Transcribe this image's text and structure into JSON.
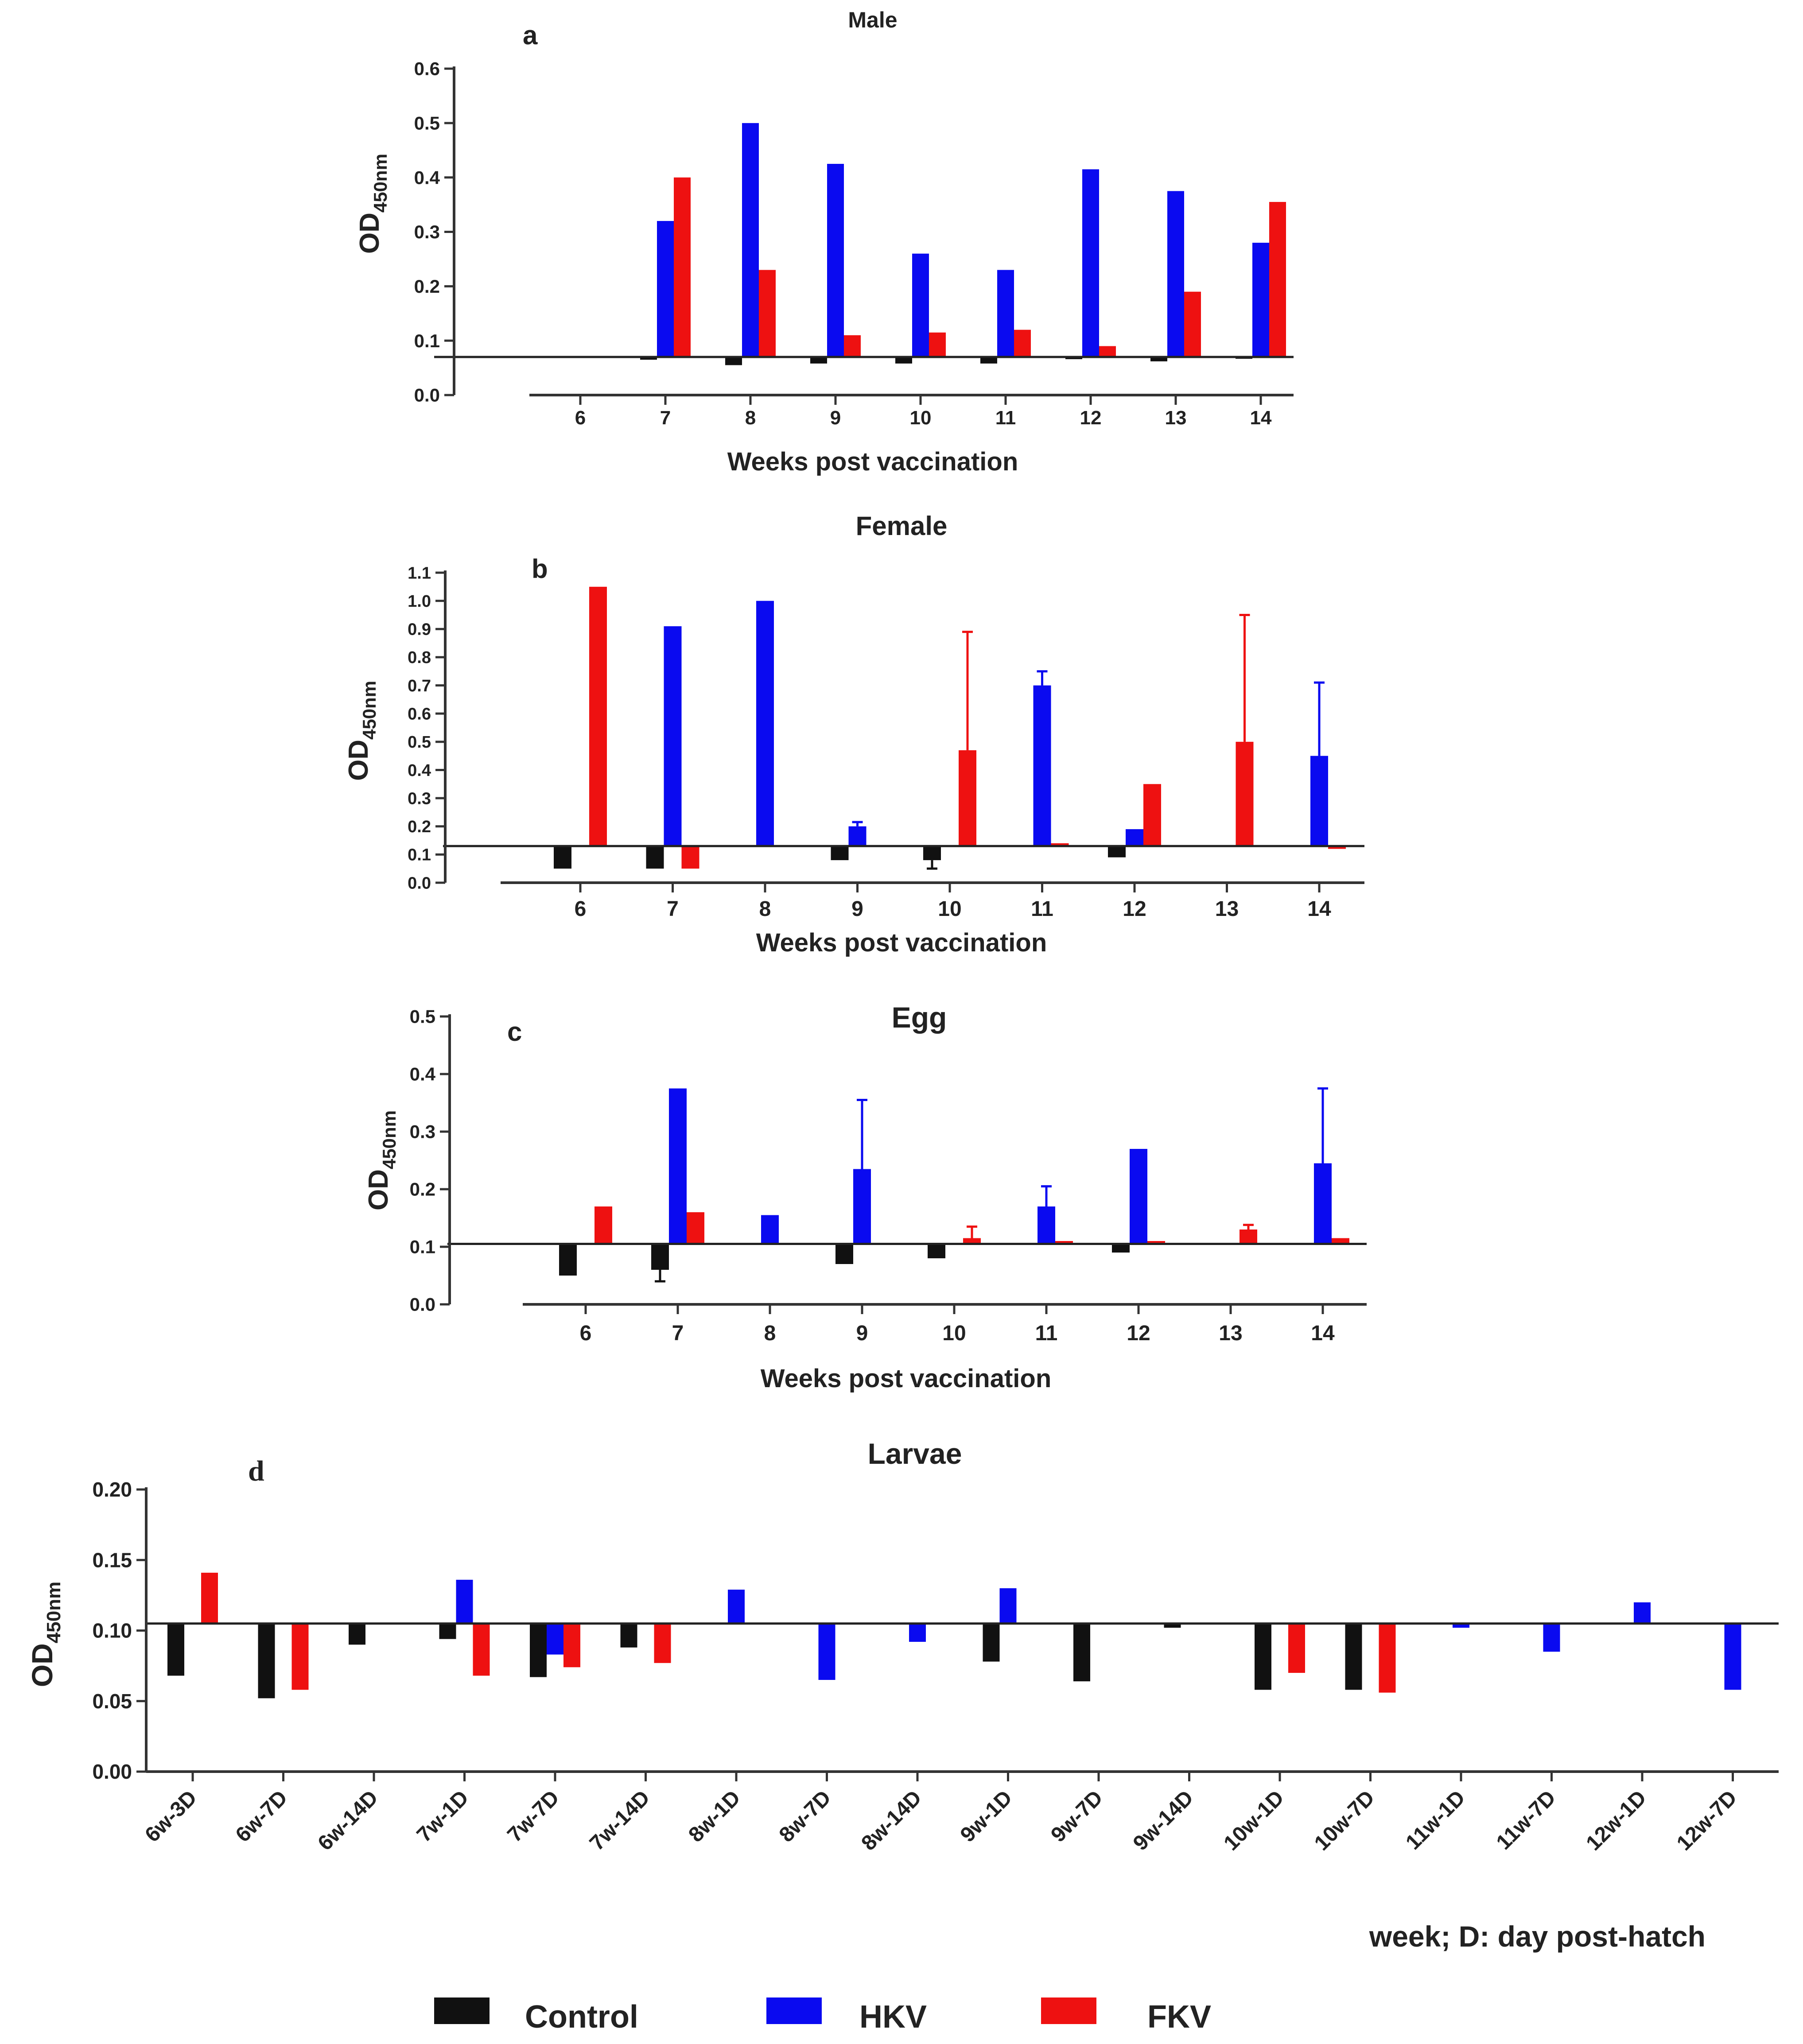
{
  "colors": {
    "Control": "#111111",
    "HKV": "#0a0af0",
    "FKV": "#ee1111"
  },
  "legend": [
    {
      "name": "Control",
      "color": "#111111"
    },
    {
      "name": "HKV",
      "color": "#0a0af0"
    },
    {
      "name": "FKV",
      "color": "#ee1111"
    }
  ],
  "chart_data": [
    {
      "id": "a",
      "type": "bar",
      "panel_label": "a",
      "title": "Male",
      "ylabel_main": "OD",
      "ylabel_sub": "450nm",
      "xlabel": "Weeks post vaccination",
      "baseline": 0.07,
      "ylim": [
        0,
        0.6
      ],
      "yticks": [
        "0.0",
        "0.1",
        "0.2",
        "0.3",
        "0.4",
        "0.5",
        "0.6"
      ],
      "categories": [
        "6",
        "7",
        "8",
        "9",
        "10",
        "11",
        "12",
        "13",
        "14"
      ],
      "series": [
        {
          "name": "Control",
          "values": [
            null,
            0.065,
            0.055,
            0.058,
            0.058,
            0.058,
            0.066,
            0.062,
            0.068
          ]
        },
        {
          "name": "HKV",
          "values": [
            null,
            0.32,
            0.5,
            0.425,
            0.26,
            0.23,
            0.415,
            0.375,
            0.28
          ]
        },
        {
          "name": "FKV",
          "values": [
            null,
            0.4,
            0.23,
            0.11,
            0.115,
            0.12,
            0.09,
            0.19,
            0.355
          ]
        }
      ]
    },
    {
      "id": "b",
      "type": "bar",
      "panel_label": "b",
      "title": "Female",
      "ylabel_main": "OD",
      "ylabel_sub": "450nm",
      "xlabel": "Weeks post vaccination",
      "baseline": 0.13,
      "ylim": [
        0,
        1.1
      ],
      "yticks": [
        "0.0",
        "0.1",
        "0.2",
        "0.3",
        "0.4",
        "0.5",
        "0.6",
        "0.7",
        "0.8",
        "0.9",
        "1.0",
        "1.1"
      ],
      "categories": [
        "6",
        "7",
        "8",
        "9",
        "10",
        "11",
        "12",
        "13",
        "14"
      ],
      "series": [
        {
          "name": "Control",
          "values": [
            0.05,
            0.05,
            null,
            0.08,
            0.08,
            null,
            0.09,
            null,
            null
          ],
          "errors": [
            0,
            0,
            0,
            0,
            0.03,
            0,
            0,
            0,
            0
          ]
        },
        {
          "name": "HKV",
          "values": [
            null,
            0.91,
            1.0,
            0.2,
            null,
            0.7,
            0.19,
            null,
            0.45
          ],
          "errors": [
            0,
            0,
            0,
            0.015,
            0,
            0.05,
            0,
            0,
            0.26
          ]
        },
        {
          "name": "FKV",
          "values": [
            1.05,
            0.05,
            null,
            null,
            0.47,
            0.14,
            0.35,
            0.5,
            0.12
          ],
          "errors": [
            0,
            0,
            0,
            0,
            0.42,
            0,
            0,
            0.45,
            0
          ]
        }
      ]
    },
    {
      "id": "c",
      "type": "bar",
      "panel_label": "c",
      "title": "Egg",
      "ylabel_main": "OD",
      "ylabel_sub": "450nm",
      "xlabel": "Weeks post vaccination",
      "baseline": 0.105,
      "ylim": [
        0,
        0.5
      ],
      "yticks": [
        "0.0",
        "0.1",
        "0.2",
        "0.3",
        "0.4",
        "0.5"
      ],
      "categories": [
        "6",
        "7",
        "8",
        "9",
        "10",
        "11",
        "12",
        "13",
        "14"
      ],
      "series": [
        {
          "name": "Control",
          "values": [
            0.05,
            0.06,
            null,
            0.07,
            0.08,
            null,
            0.09,
            null,
            null
          ],
          "errors": [
            0,
            0.02,
            0,
            0,
            0,
            0,
            0,
            0,
            0
          ]
        },
        {
          "name": "HKV",
          "values": [
            null,
            0.375,
            0.155,
            0.235,
            null,
            0.17,
            0.27,
            null,
            0.245
          ],
          "errors": [
            0,
            0,
            0,
            0.12,
            0,
            0.035,
            0,
            0,
            0.13
          ]
        },
        {
          "name": "FKV",
          "values": [
            0.17,
            0.16,
            null,
            null,
            0.115,
            0.11,
            0.11,
            0.13,
            0.115
          ],
          "errors": [
            0,
            0,
            0,
            0,
            0.02,
            0,
            0,
            0.008,
            0
          ]
        }
      ]
    },
    {
      "id": "d",
      "type": "bar",
      "panel_label": "d",
      "title": "Larvae",
      "ylabel_main": "OD",
      "ylabel_sub": "450nm",
      "xlabel": "week; D: day post-hatch",
      "baseline": 0.105,
      "ylim": [
        0,
        0.2
      ],
      "yticks": [
        "0.00",
        "0.05",
        "0.10",
        "0.15",
        "0.20"
      ],
      "categories": [
        "6w-3D",
        "6w-7D",
        "6w-14D",
        "7w-1D",
        "7w-7D",
        "7w-14D",
        "8w-1D",
        "8w-7D",
        "8w-14D",
        "9w-1D",
        "9w-7D",
        "9w-14D",
        "10w-1D",
        "10w-7D",
        "11w-1D",
        "11w-7D",
        "12w-1D",
        "12w-7D"
      ],
      "series": [
        {
          "name": "Control",
          "values": [
            0.068,
            0.052,
            0.09,
            0.094,
            0.067,
            0.088,
            null,
            null,
            null,
            0.078,
            0.064,
            0.102,
            0.058,
            0.058,
            null,
            null,
            null,
            null
          ]
        },
        {
          "name": "HKV",
          "values": [
            null,
            null,
            null,
            0.136,
            0.083,
            null,
            0.129,
            0.065,
            0.092,
            0.13,
            null,
            null,
            null,
            null,
            0.102,
            0.085,
            0.12,
            0.058
          ]
        },
        {
          "name": "FKV",
          "values": [
            0.141,
            0.058,
            null,
            0.068,
            0.074,
            0.077,
            null,
            null,
            null,
            null,
            null,
            null,
            0.07,
            0.056,
            null,
            null,
            null,
            null
          ]
        }
      ]
    }
  ]
}
